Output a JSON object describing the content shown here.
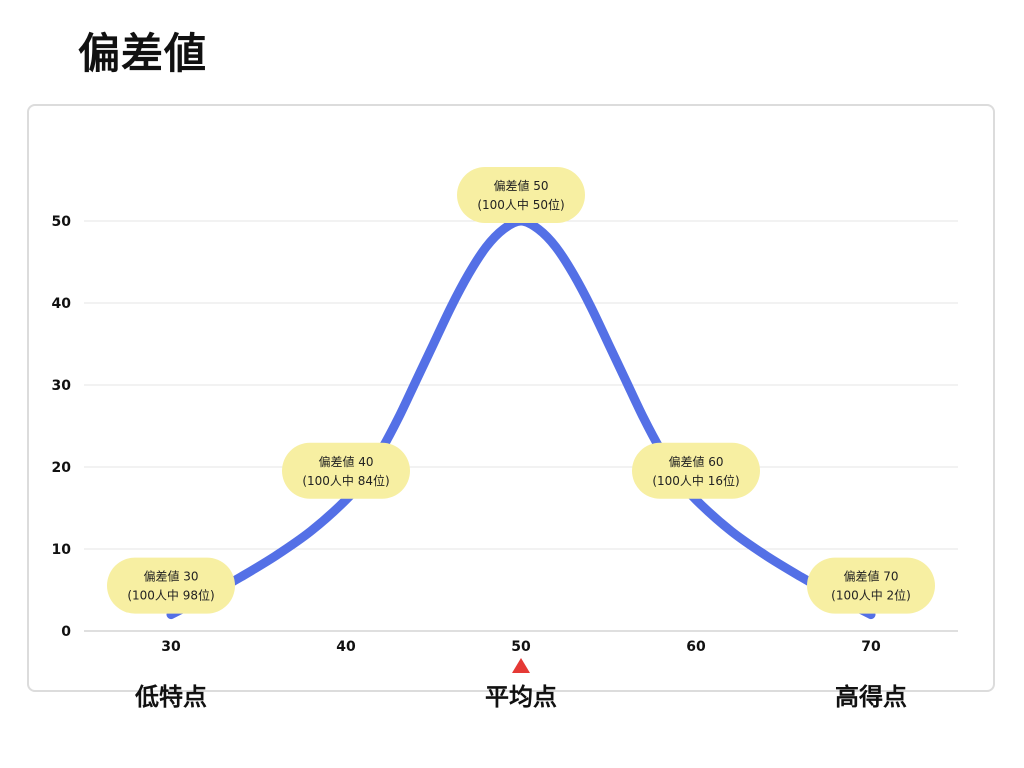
{
  "title": "偏差値",
  "colors": {
    "line": "#5470e6",
    "callout_bg": "#f7efa2",
    "grid": "#e6e6e6",
    "axis": "#bfbfbf",
    "mean_marker": "#e53935"
  },
  "chart_data": {
    "type": "line",
    "title": "偏差値",
    "xlabel": "",
    "ylabel": "",
    "x_ticks": [
      30,
      40,
      50,
      60,
      70
    ],
    "y_ticks": [
      0,
      10,
      20,
      30,
      40,
      50
    ],
    "xlim": [
      25,
      75
    ],
    "ylim": [
      0,
      50
    ],
    "grid": true,
    "legend": "none",
    "series": [
      {
        "x": [
          30,
          32,
          34,
          36,
          38,
          40,
          41,
          42,
          43,
          44,
          45,
          46,
          47,
          48,
          49,
          50,
          51,
          52,
          53,
          54,
          55,
          56,
          57,
          58,
          59,
          60,
          62,
          64,
          66,
          68,
          70
        ],
        "values": [
          2,
          4.2,
          6.6,
          9.2,
          12.2,
          16,
          18.6,
          22,
          26,
          30.5,
          35,
          39.5,
          43.5,
          46.8,
          49,
          50,
          49,
          46.8,
          43.5,
          39.5,
          35,
          30.5,
          26,
          22,
          18.6,
          16,
          12.2,
          9.2,
          6.6,
          4.2,
          2
        ]
      }
    ],
    "annotations": [
      {
        "x": 30,
        "y": 2,
        "line1": "偏差値 30",
        "line2": "(100人中 98位)"
      },
      {
        "x": 40,
        "y": 16,
        "line1": "偏差値 40",
        "line2": "(100人中 84位)"
      },
      {
        "x": 50,
        "y": 50,
        "line1": "偏差値 50",
        "line2": "(100人中 50位)"
      },
      {
        "x": 60,
        "y": 16,
        "line1": "偏差値 60",
        "line2": "(100人中 16位)"
      },
      {
        "x": 70,
        "y": 2,
        "line1": "偏差値 70",
        "line2": "(100人中 2位)"
      }
    ],
    "mean_marker_x": 50,
    "bottom_labels": [
      {
        "x": 30,
        "text": "低特点"
      },
      {
        "x": 50,
        "text": "平均点"
      },
      {
        "x": 70,
        "text": "高得点"
      }
    ]
  }
}
